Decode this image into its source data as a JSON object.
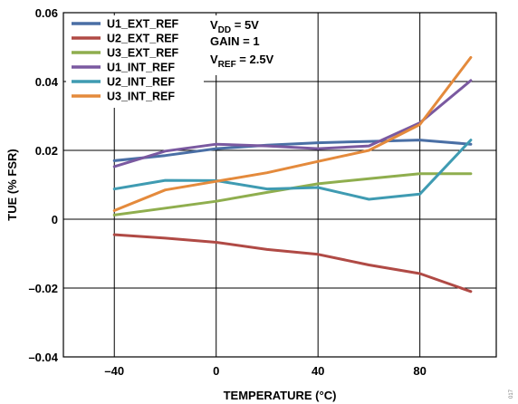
{
  "chart_data": {
    "type": "line",
    "xlabel": "TEMPERATURE (°C)",
    "ylabel": "TUE (% FSR)",
    "xlim": [
      -60,
      110
    ],
    "ylim": [
      -0.04,
      0.06
    ],
    "x_ticks": [
      -40,
      0,
      40,
      80
    ],
    "x_tick_labels": [
      "–40",
      "0",
      "40",
      "80"
    ],
    "y_ticks": [
      -0.04,
      -0.02,
      0,
      0.02,
      0.04,
      0.06
    ],
    "y_tick_labels": [
      "–0.04",
      "–0.02",
      "0",
      "0.02",
      "0.04",
      "0.06"
    ],
    "grid": true,
    "legend_position": "top-left",
    "x": [
      -40,
      -20,
      0,
      20,
      40,
      60,
      80,
      100
    ],
    "series": [
      {
        "name": "U1_EXT_REF",
        "color": "#4a6fa5",
        "values": [
          0.017,
          0.0185,
          0.0205,
          0.0215,
          0.0222,
          0.0226,
          0.023,
          0.0218
        ]
      },
      {
        "name": "U2_EXT_REF",
        "color": "#b04a45",
        "values": [
          -0.0045,
          -0.0055,
          -0.0067,
          -0.0088,
          -0.0102,
          -0.0133,
          -0.0158,
          -0.021
        ]
      },
      {
        "name": "U3_EXT_REF",
        "color": "#8fae4e",
        "values": [
          0.0012,
          0.0032,
          0.0052,
          0.0078,
          0.0103,
          0.0118,
          0.0132,
          0.0132
        ]
      },
      {
        "name": "U1_INT_REF",
        "color": "#7a59a0",
        "values": [
          0.0153,
          0.0198,
          0.0218,
          0.0213,
          0.0205,
          0.0213,
          0.028,
          0.0403
        ]
      },
      {
        "name": "U2_INT_REF",
        "color": "#3f9bb2",
        "values": [
          0.0088,
          0.0113,
          0.0112,
          0.0088,
          0.0092,
          0.0058,
          0.0073,
          0.023
        ]
      },
      {
        "name": "U3_INT_REF",
        "color": "#e48a3c",
        "values": [
          0.0025,
          0.0085,
          0.011,
          0.0135,
          0.0168,
          0.02,
          0.0275,
          0.047
        ]
      }
    ],
    "conditions": [
      {
        "main": "V",
        "sub": "DD",
        "rest": " = 5V"
      },
      {
        "main": "GAIN = 1",
        "sub": "",
        "rest": ""
      },
      {
        "main": "V",
        "sub": "REF",
        "rest": " = 2.5V"
      }
    ],
    "watermark": "017"
  }
}
